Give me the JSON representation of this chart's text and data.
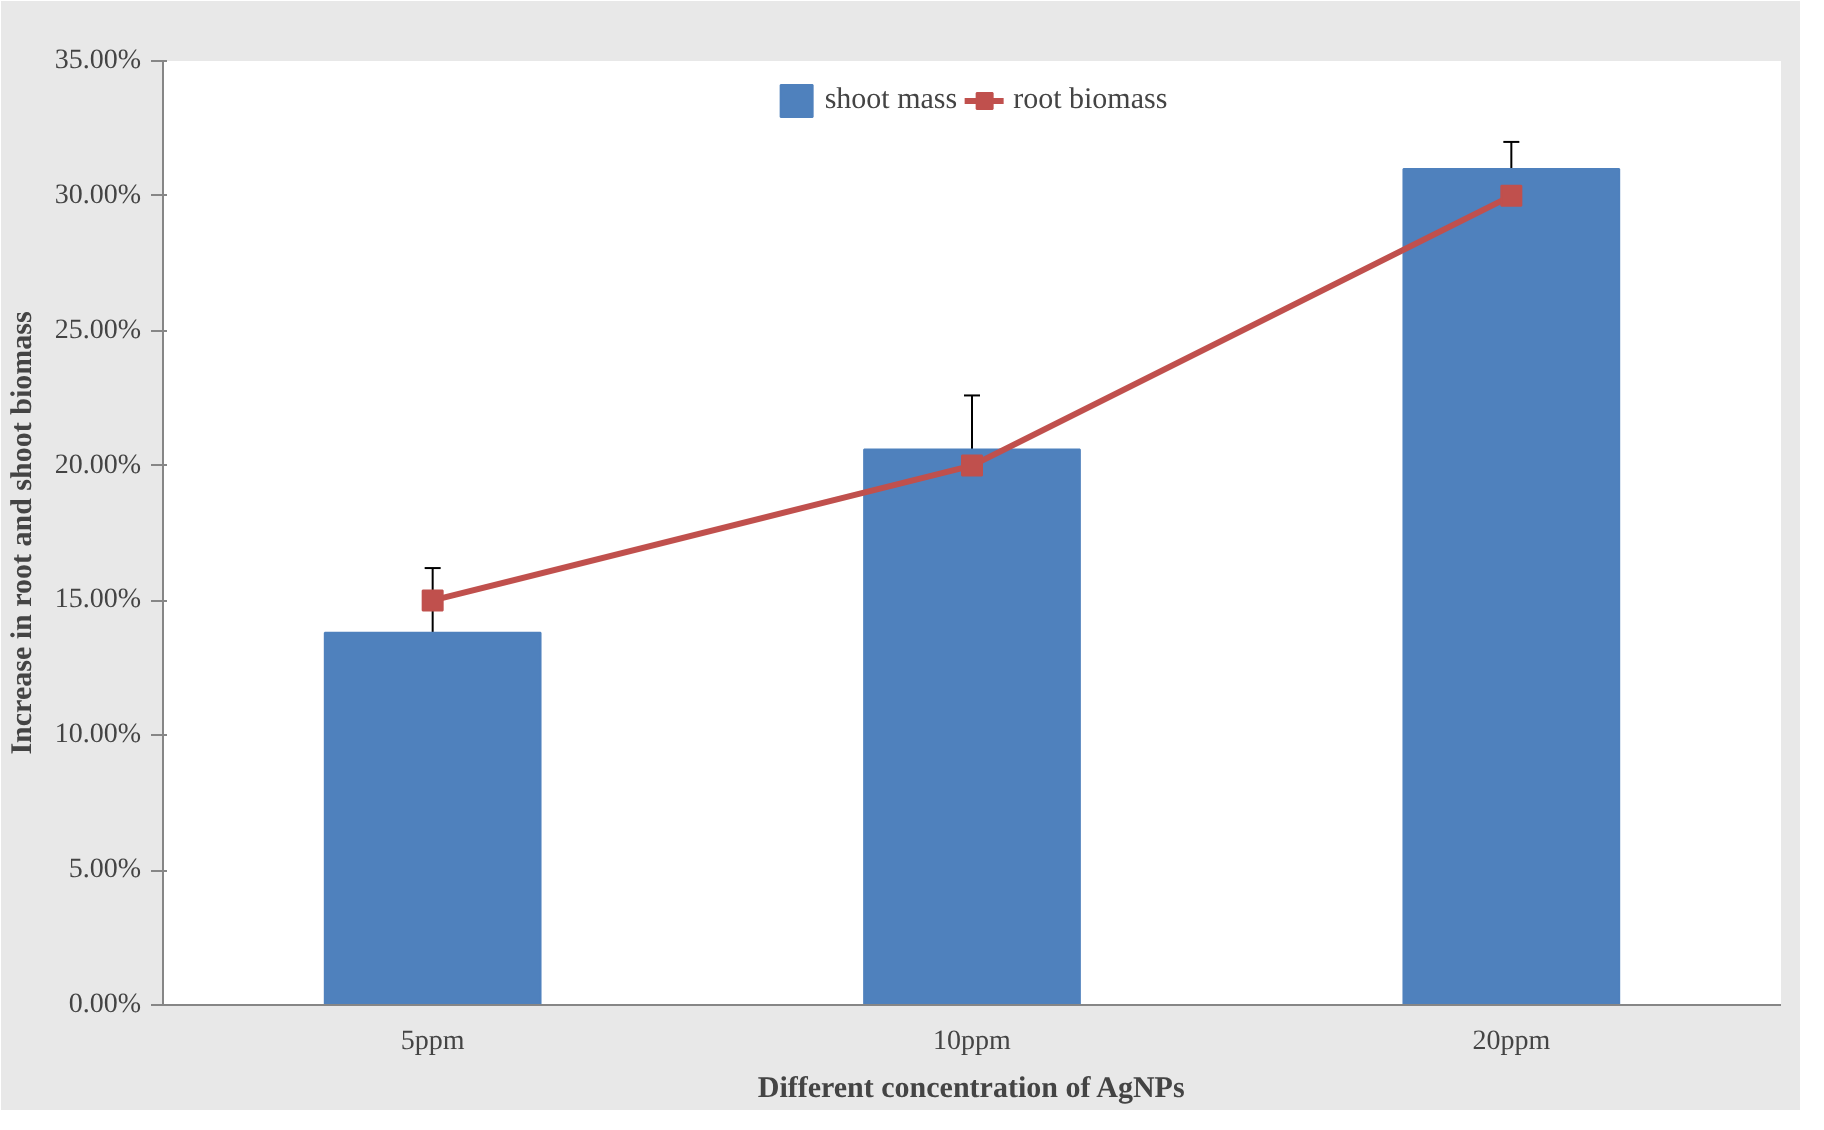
{
  "chart_data": {
    "type": "bar",
    "xlabel": "Different concentration of AgNPs",
    "ylabel": "Increase in root and shoot biomass",
    "categories": [
      "5ppm",
      "10ppm",
      "20ppm"
    ],
    "series": [
      {
        "name": "shoot mass",
        "color": "#4f81bd",
        "values": [
          13.8,
          20.6,
          31.0
        ],
        "errors": [
          2.4,
          2.0,
          1.0
        ]
      },
      {
        "name": "root biomass",
        "type": "line",
        "color": "#c0504d",
        "values": [
          15.0,
          20.0,
          30.0
        ],
        "marker": "square"
      }
    ],
    "ylim": [
      0,
      35
    ],
    "yticks": [
      {
        "value": 0,
        "label": "0.00%"
      },
      {
        "value": 5,
        "label": "5.00%"
      },
      {
        "value": 10,
        "label": "10.00%"
      },
      {
        "value": 15,
        "label": "15.00%"
      },
      {
        "value": 20,
        "label": "20.00%"
      },
      {
        "value": 25,
        "label": "25.00%"
      },
      {
        "value": 30,
        "label": "30.00%"
      },
      {
        "value": 35,
        "label": "35.00%"
      }
    ],
    "legend": "top",
    "grid": false
  }
}
